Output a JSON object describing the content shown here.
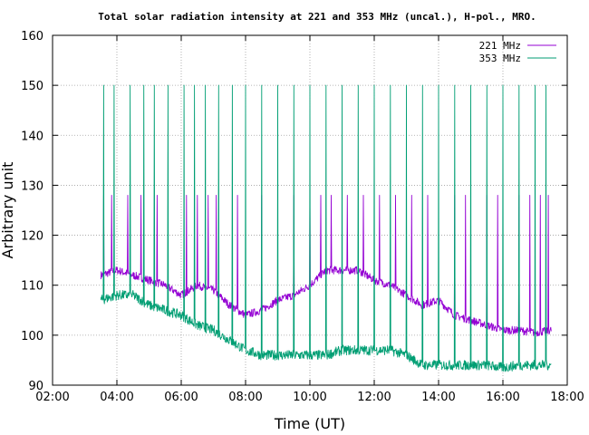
{
  "chart_data": {
    "type": "line",
    "title": "Total solar radiation intensity at 221 and 353 MHz (uncal.), H-pol., MRO.",
    "xlabel": "Time (UT)",
    "ylabel": "Arbitrary unit",
    "xlim": [
      "02:00",
      "18:00"
    ],
    "ylim": [
      90,
      160
    ],
    "x_ticks": [
      "02:00",
      "04:00",
      "06:00",
      "08:00",
      "10:00",
      "12:00",
      "14:00",
      "16:00",
      "18:00"
    ],
    "y_ticks": [
      90,
      100,
      110,
      120,
      130,
      140,
      150,
      160
    ],
    "grid": true,
    "legend_position": "top-right",
    "x": [
      "03:30",
      "04:00",
      "04:30",
      "05:00",
      "05:30",
      "06:00",
      "06:30",
      "07:00",
      "07:30",
      "08:00",
      "08:30",
      "09:00",
      "09:30",
      "10:00",
      "10:30",
      "11:00",
      "11:30",
      "12:00",
      "12:30",
      "13:00",
      "13:30",
      "14:00",
      "14:30",
      "15:00",
      "15:30",
      "16:00",
      "16:30",
      "17:00",
      "17:30"
    ],
    "series": [
      {
        "name": "221 MHz",
        "color": "#9400d3",
        "values": [
          112,
          113,
          112,
          111,
          110,
          108,
          110,
          109,
          106,
          104,
          105,
          107,
          108,
          110,
          113,
          113,
          113,
          111,
          110,
          108,
          106,
          107,
          104,
          103,
          102,
          101,
          101,
          100.5,
          101
        ],
        "calibration_spikes": {
          "times": [
            "03:35",
            "03:50",
            "04:20",
            "04:45",
            "05:15",
            "06:10",
            "06:30",
            "06:50",
            "07:05",
            "07:45",
            "08:30",
            "09:30",
            "10:00",
            "10:20",
            "10:40",
            "11:10",
            "11:40",
            "12:10",
            "12:40",
            "13:10",
            "13:40",
            "14:30",
            "14:50",
            "15:30",
            "15:50",
            "16:30",
            "16:50",
            "17:10",
            "17:25"
          ],
          "level": 128
        }
      },
      {
        "name": "353 MHz",
        "color": "#009e73",
        "values": [
          107,
          108,
          108,
          106,
          105,
          104,
          102,
          101,
          99,
          97,
          96,
          96,
          96,
          96,
          96,
          97,
          97,
          97,
          97,
          96,
          94,
          94,
          94,
          94,
          94,
          93.5,
          94,
          94,
          94
        ],
        "calibration_spikes": {
          "times": [
            "03:35",
            "03:55",
            "04:25",
            "04:50",
            "05:10",
            "05:35",
            "06:05",
            "06:25",
            "06:45",
            "07:10",
            "07:35",
            "08:00",
            "08:30",
            "09:00",
            "09:30",
            "10:00",
            "10:30",
            "11:00",
            "11:30",
            "12:00",
            "12:30",
            "13:00",
            "13:30",
            "14:00",
            "14:30",
            "15:00",
            "15:30",
            "16:00",
            "16:30",
            "17:00",
            "17:20"
          ],
          "level": 150
        }
      }
    ]
  }
}
